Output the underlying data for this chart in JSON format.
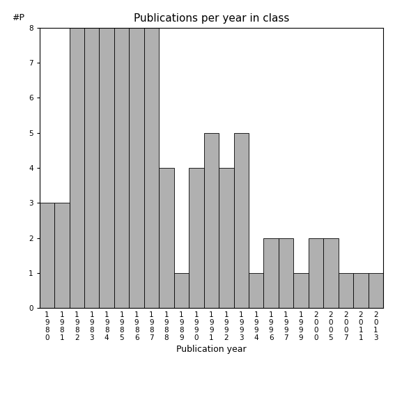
{
  "title": "Publications per year in class",
  "xlabel": "Publication year",
  "ylabel": "#P",
  "categories": [
    "1980",
    "1981",
    "1982",
    "1983",
    "1984",
    "1985",
    "1986",
    "1987",
    "1988",
    "1989",
    "1990",
    "1991",
    "1992",
    "1993",
    "1994",
    "1996",
    "1997",
    "1999",
    "2000",
    "2005",
    "2007",
    "2011",
    "2013"
  ],
  "values": [
    3,
    3,
    8,
    8,
    8,
    8,
    8,
    8,
    4,
    1,
    4,
    5,
    4,
    5,
    1,
    2,
    2,
    1,
    2,
    2,
    1,
    1,
    1
  ],
  "bar_color": "#b0b0b0",
  "bar_edge_color": "#000000",
  "ylim": [
    0,
    8
  ],
  "yticks": [
    0,
    1,
    2,
    3,
    4,
    5,
    6,
    7,
    8
  ],
  "background_color": "#ffffff",
  "title_fontsize": 11,
  "axis_label_fontsize": 9,
  "tick_fontsize": 7.5
}
